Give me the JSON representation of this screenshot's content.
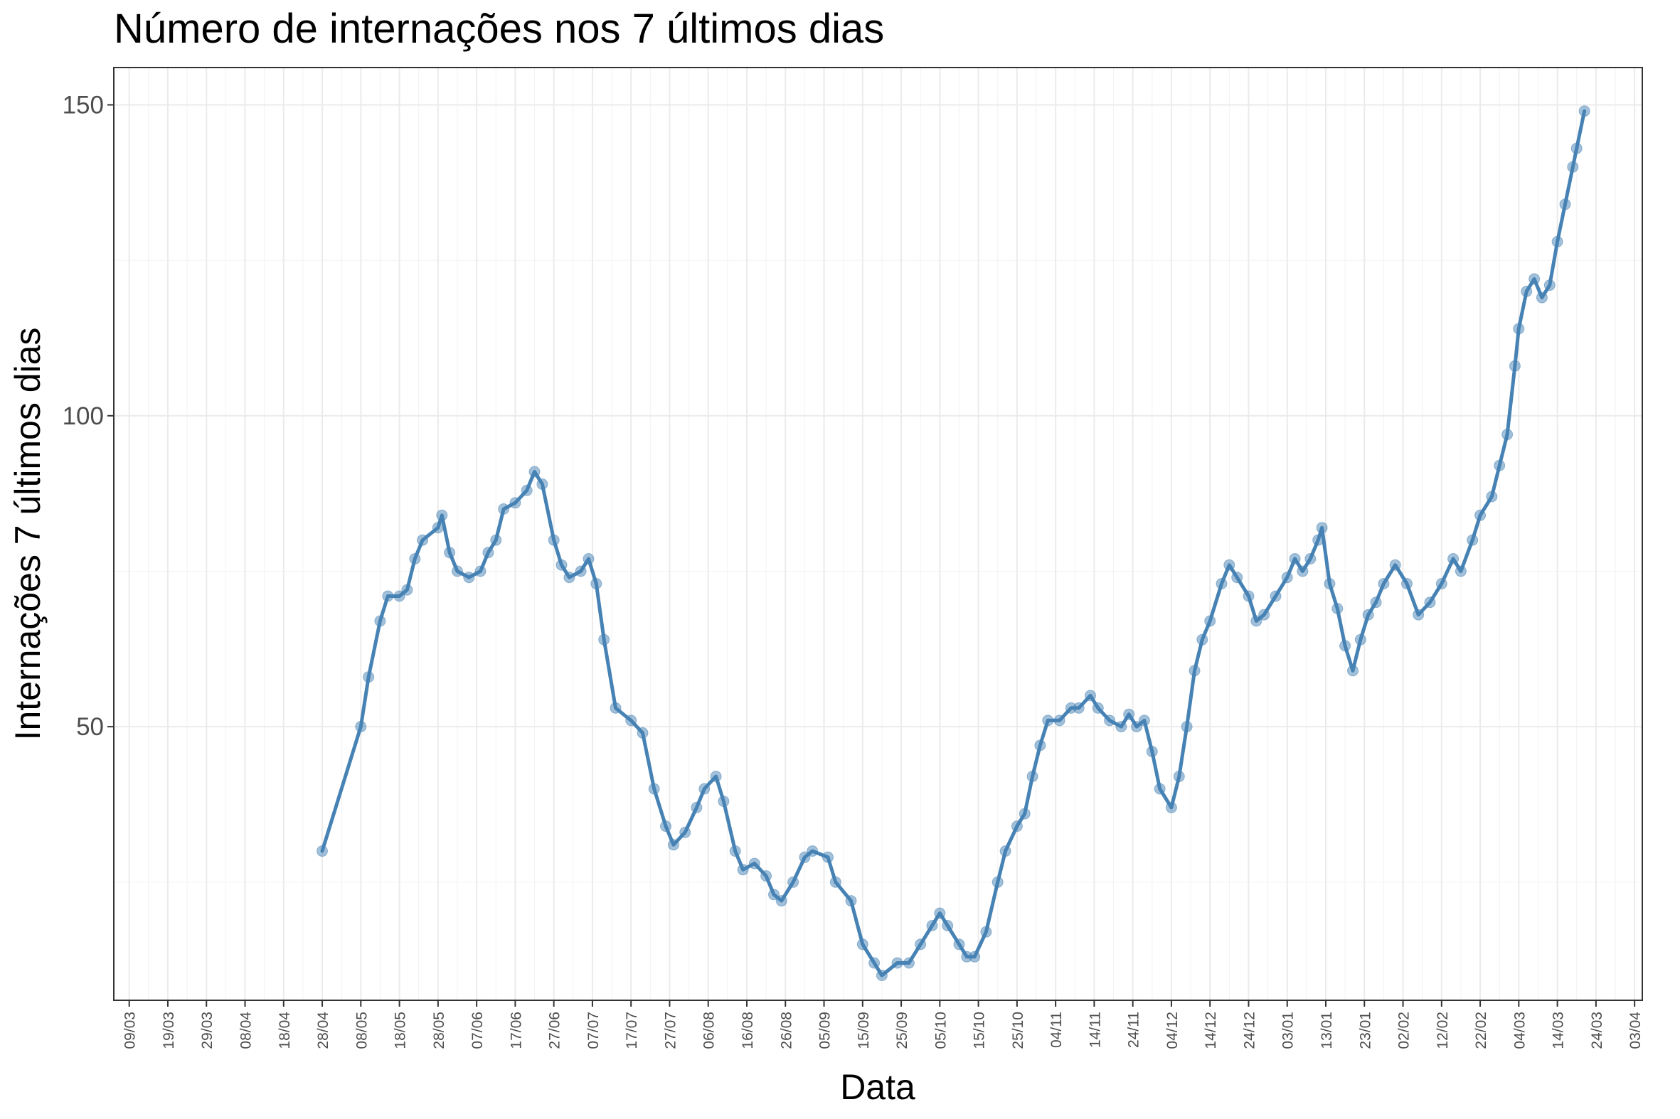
{
  "chart_data": {
    "type": "line",
    "title": "Número de internações nos 7 últimos dias",
    "xlabel": "Data",
    "ylabel": "Internações 7 últimos dias",
    "x_ticks": [
      "09/03",
      "19/03",
      "29/03",
      "08/04",
      "18/04",
      "28/04",
      "08/05",
      "18/05",
      "28/05",
      "07/06",
      "17/06",
      "27/06",
      "07/07",
      "17/07",
      "27/07",
      "06/08",
      "16/08",
      "26/08",
      "05/09",
      "15/09",
      "25/09",
      "05/10",
      "15/10",
      "25/10",
      "04/11",
      "14/11",
      "24/11",
      "04/12",
      "14/12",
      "24/12",
      "03/01",
      "13/01",
      "23/01",
      "02/02",
      "12/02",
      "22/02",
      "04/03",
      "14/03",
      "24/03",
      "03/04"
    ],
    "y_ticks": [
      50,
      100,
      150
    ],
    "ylim": [
      6,
      156
    ],
    "grid": true,
    "series": [
      {
        "color": "#4682b4",
        "points": [
          [
            "28/04",
            30
          ],
          [
            "08/05",
            50
          ],
          [
            "10/05",
            58
          ],
          [
            "13/05",
            67
          ],
          [
            "15/05",
            71
          ],
          [
            "18/05",
            71
          ],
          [
            "20/05",
            72
          ],
          [
            "22/05",
            77
          ],
          [
            "24/05",
            80
          ],
          [
            "28/05",
            82
          ],
          [
            "29/05",
            84
          ],
          [
            "31/05",
            78
          ],
          [
            "02/06",
            75
          ],
          [
            "05/06",
            74
          ],
          [
            "08/06",
            75
          ],
          [
            "10/06",
            78
          ],
          [
            "12/06",
            80
          ],
          [
            "14/06",
            85
          ],
          [
            "17/06",
            86
          ],
          [
            "20/06",
            88
          ],
          [
            "22/06",
            91
          ],
          [
            "24/06",
            89
          ],
          [
            "27/06",
            80
          ],
          [
            "29/06",
            76
          ],
          [
            "01/07",
            74
          ],
          [
            "04/07",
            75
          ],
          [
            "06/07",
            77
          ],
          [
            "08/07",
            73
          ],
          [
            "10/07",
            64
          ],
          [
            "13/07",
            53
          ],
          [
            "17/07",
            51
          ],
          [
            "20/07",
            49
          ],
          [
            "23/07",
            40
          ],
          [
            "26/07",
            34
          ],
          [
            "28/07",
            31
          ],
          [
            "31/07",
            33
          ],
          [
            "03/08",
            37
          ],
          [
            "05/08",
            40
          ],
          [
            "08/08",
            42
          ],
          [
            "10/08",
            38
          ],
          [
            "13/08",
            30
          ],
          [
            "15/08",
            27
          ],
          [
            "18/08",
            28
          ],
          [
            "21/08",
            26
          ],
          [
            "23/08",
            23
          ],
          [
            "25/08",
            22
          ],
          [
            "28/08",
            25
          ],
          [
            "31/08",
            29
          ],
          [
            "02/09",
            30
          ],
          [
            "06/09",
            29
          ],
          [
            "08/09",
            25
          ],
          [
            "12/09",
            22
          ],
          [
            "15/09",
            15
          ],
          [
            "18/09",
            12
          ],
          [
            "20/09",
            10
          ],
          [
            "24/09",
            12
          ],
          [
            "27/09",
            12
          ],
          [
            "30/09",
            15
          ],
          [
            "03/10",
            18
          ],
          [
            "05/10",
            20
          ],
          [
            "07/10",
            18
          ],
          [
            "10/10",
            15
          ],
          [
            "12/10",
            13
          ],
          [
            "14/10",
            13
          ],
          [
            "17/10",
            17
          ],
          [
            "20/10",
            25
          ],
          [
            "22/10",
            30
          ],
          [
            "25/10",
            34
          ],
          [
            "27/10",
            36
          ],
          [
            "29/10",
            42
          ],
          [
            "31/10",
            47
          ],
          [
            "02/11",
            51
          ],
          [
            "05/11",
            51
          ],
          [
            "08/11",
            53
          ],
          [
            "10/11",
            53
          ],
          [
            "13/11",
            55
          ],
          [
            "15/11",
            53
          ],
          [
            "18/11",
            51
          ],
          [
            "21/11",
            50
          ],
          [
            "23/11",
            52
          ],
          [
            "25/11",
            50
          ],
          [
            "27/11",
            51
          ],
          [
            "29/11",
            46
          ],
          [
            "01/12",
            40
          ],
          [
            "04/12",
            37
          ],
          [
            "06/12",
            42
          ],
          [
            "08/12",
            50
          ],
          [
            "10/12",
            59
          ],
          [
            "12/12",
            64
          ],
          [
            "14/12",
            67
          ],
          [
            "17/12",
            73
          ],
          [
            "19/12",
            76
          ],
          [
            "21/12",
            74
          ],
          [
            "24/12",
            71
          ],
          [
            "26/12",
            67
          ],
          [
            "28/12",
            68
          ],
          [
            "31/12",
            71
          ],
          [
            "03/01",
            74
          ],
          [
            "05/01",
            77
          ],
          [
            "07/01",
            75
          ],
          [
            "09/01",
            77
          ],
          [
            "11/01",
            80
          ],
          [
            "12/01",
            82
          ],
          [
            "14/01",
            73
          ],
          [
            "16/01",
            69
          ],
          [
            "18/01",
            63
          ],
          [
            "20/01",
            59
          ],
          [
            "22/01",
            64
          ],
          [
            "24/01",
            68
          ],
          [
            "26/01",
            70
          ],
          [
            "28/01",
            73
          ],
          [
            "31/01",
            76
          ],
          [
            "03/02",
            73
          ],
          [
            "06/02",
            68
          ],
          [
            "09/02",
            70
          ],
          [
            "12/02",
            73
          ],
          [
            "15/02",
            77
          ],
          [
            "17/02",
            75
          ],
          [
            "20/02",
            80
          ],
          [
            "22/02",
            84
          ],
          [
            "25/02",
            87
          ],
          [
            "27/02",
            92
          ],
          [
            "01/03",
            97
          ],
          [
            "03/03",
            108
          ],
          [
            "04/03",
            114
          ],
          [
            "06/03",
            120
          ],
          [
            "08/03",
            122
          ],
          [
            "10/03",
            119
          ],
          [
            "12/03",
            121
          ],
          [
            "14/03",
            128
          ],
          [
            "16/03",
            134
          ],
          [
            "18/03",
            140
          ],
          [
            "19/03",
            143
          ],
          [
            "21/03",
            149
          ]
        ]
      }
    ]
  }
}
